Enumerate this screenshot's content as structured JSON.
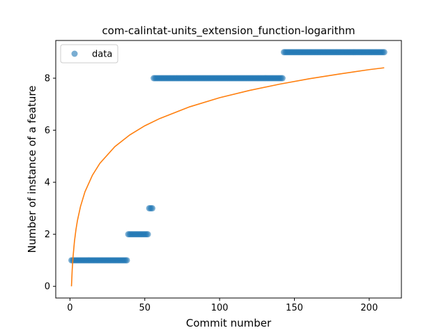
{
  "chart_data": {
    "type": "scatter",
    "title": "com-calintat-units_extension_function-logarithm",
    "xlabel": "Commit number",
    "ylabel": "Number of instance of a feature",
    "xlim": [
      -9.5,
      221.5
    ],
    "ylim": [
      -0.45,
      9.45
    ],
    "xticks": [
      0,
      50,
      100,
      150,
      200
    ],
    "yticks": [
      0,
      2,
      4,
      6,
      8
    ],
    "grid": false,
    "legend": {
      "position": "upper-left",
      "entries": [
        "data"
      ]
    },
    "colors": {
      "data": "#1f77b4",
      "fit": "#ff7f0e"
    },
    "series": [
      {
        "name": "data",
        "kind": "scatter",
        "segments": [
          {
            "x_start": 1,
            "x_end": 38,
            "y": 1
          },
          {
            "x_start": 39,
            "x_end": 52,
            "y": 2
          },
          {
            "x_start": 53,
            "x_end": 55,
            "y": 3
          },
          {
            "x_start": 56,
            "x_end": 142,
            "y": 8
          },
          {
            "x_start": 143,
            "x_end": 210,
            "y": 9
          }
        ]
      },
      {
        "kind": "line",
        "x": [
          1,
          1.5,
          2,
          3,
          4,
          5,
          7,
          10,
          15,
          20,
          30,
          40,
          50,
          60,
          80,
          100,
          120,
          140,
          160,
          180,
          200,
          210
        ],
        "y": [
          0.0,
          0.64,
          1.09,
          1.73,
          2.18,
          2.53,
          3.06,
          3.63,
          4.27,
          4.73,
          5.37,
          5.82,
          6.17,
          6.45,
          6.9,
          7.25,
          7.53,
          7.77,
          7.98,
          8.16,
          8.33,
          8.4
        ]
      }
    ]
  }
}
